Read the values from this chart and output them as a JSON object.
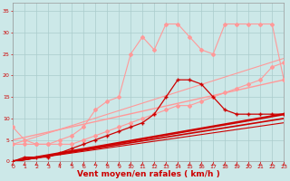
{
  "bg_color": "#cce8e8",
  "grid_color": "#aacccc",
  "xlabel": "Vent moyen/en rafales ( km/h )",
  "xlabel_color": "#cc0000",
  "xlim": [
    0,
    23
  ],
  "ylim": [
    0,
    37
  ],
  "xticks": [
    0,
    1,
    2,
    3,
    4,
    5,
    6,
    7,
    8,
    9,
    10,
    11,
    12,
    13,
    14,
    15,
    16,
    17,
    18,
    19,
    20,
    21,
    22,
    23
  ],
  "yticks": [
    0,
    5,
    10,
    15,
    20,
    25,
    30,
    35
  ],
  "line_pink_upper": {
    "x": [
      0,
      1,
      2,
      3,
      4,
      5,
      6,
      7,
      8,
      9,
      10,
      11,
      12,
      13,
      14,
      15,
      16,
      17,
      18,
      19,
      20,
      21,
      22,
      23
    ],
    "y": [
      8,
      5,
      4,
      4,
      5,
      6,
      8,
      12,
      14,
      15,
      25,
      29,
      26,
      32,
      32,
      29,
      26,
      25,
      32,
      32,
      32,
      32,
      32,
      19
    ],
    "color": "#ff9999",
    "lw": 0.8,
    "marker": "D",
    "ms": 2.0
  },
  "line_pink_lower": {
    "x": [
      0,
      1,
      2,
      3,
      4,
      5,
      6,
      7,
      8,
      9,
      10,
      11,
      12,
      13,
      14,
      15,
      16,
      17,
      18,
      19,
      20,
      21,
      22,
      23
    ],
    "y": [
      4,
      4,
      4,
      4,
      4,
      4,
      5,
      6,
      7,
      8,
      9,
      10,
      11,
      12,
      13,
      13,
      14,
      15,
      16,
      17,
      18,
      19,
      22,
      23
    ],
    "color": "#ff9999",
    "lw": 0.8,
    "marker": "D",
    "ms": 2.0
  },
  "line_dark_jagged": {
    "x": [
      0,
      1,
      2,
      3,
      4,
      5,
      6,
      7,
      8,
      9,
      10,
      11,
      12,
      13,
      14,
      15,
      16,
      17,
      18,
      19,
      20,
      21,
      22,
      23
    ],
    "y": [
      0,
      1,
      1,
      1,
      2,
      3,
      4,
      5,
      6,
      7,
      8,
      9,
      11,
      15,
      19,
      19,
      18,
      15,
      12,
      11,
      11,
      11,
      11,
      11
    ],
    "color": "#cc0000",
    "lw": 0.9,
    "marker": "+",
    "ms": 3.5
  },
  "line_straight1": {
    "x": [
      0,
      23
    ],
    "y": [
      0,
      11
    ],
    "color": "#cc0000",
    "lw": 1.8
  },
  "line_straight2": {
    "x": [
      0,
      23
    ],
    "y": [
      0,
      10
    ],
    "color": "#cc0000",
    "lw": 1.2
  },
  "line_straight3": {
    "x": [
      0,
      23
    ],
    "y": [
      0,
      9
    ],
    "color": "#cc0000",
    "lw": 0.8
  },
  "line_straight4": {
    "x": [
      0,
      23
    ],
    "y": [
      5,
      19
    ],
    "color": "#ff9999",
    "lw": 1.0
  },
  "line_straight5": {
    "x": [
      0,
      23
    ],
    "y": [
      4,
      24
    ],
    "color": "#ff9999",
    "lw": 0.8
  },
  "tick_fontsize": 4.5,
  "xlabel_fontsize": 6.5,
  "tick_color": "#cc0000"
}
